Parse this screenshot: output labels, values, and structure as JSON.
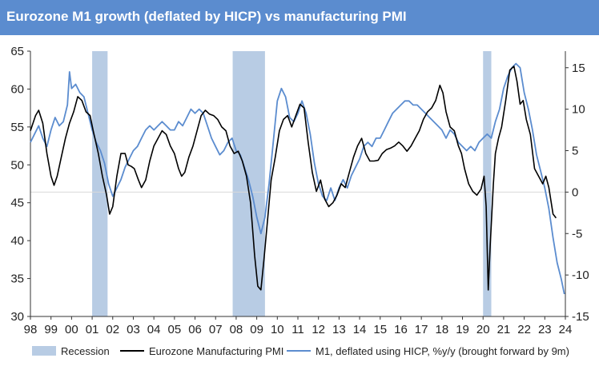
{
  "chart_data": {
    "type": "line",
    "title": "Eurozone M1 growth (deflated by HICP) vs manufacturing PMI",
    "x_tick_labels": [
      "98",
      "99",
      "00",
      "01",
      "02",
      "03",
      "04",
      "05",
      "06",
      "07",
      "08",
      "09",
      "10",
      "11",
      "12",
      "13",
      "14",
      "15",
      "16",
      "17",
      "18",
      "19",
      "20",
      "21",
      "22",
      "23",
      "24"
    ],
    "x_range": [
      1998,
      2024
    ],
    "left_axis": {
      "min": 30,
      "max": 65,
      "ticks": [
        "30",
        "35",
        "40",
        "45",
        "50",
        "55",
        "60",
        "65"
      ]
    },
    "right_axis": {
      "min": -15,
      "max": 17,
      "ticks": [
        "-15",
        "-10",
        "-5",
        "0",
        "5",
        "10",
        "15"
      ]
    },
    "recessions": [
      [
        2001.0,
        2001.75
      ],
      [
        2007.83,
        2009.4
      ],
      [
        2020.0,
        2020.4
      ]
    ],
    "series": [
      {
        "name": "Eurozone Manufacturing PMI",
        "axis": "left",
        "color": "#000000",
        "points": [
          [
            1998.0,
            54.5
          ],
          [
            1998.25,
            56.5
          ],
          [
            1998.4,
            57.2
          ],
          [
            1998.6,
            55.5
          ],
          [
            1998.8,
            51.5
          ],
          [
            1999.0,
            48.5
          ],
          [
            1999.15,
            47.3
          ],
          [
            1999.3,
            48.5
          ],
          [
            1999.5,
            51.0
          ],
          [
            1999.7,
            53.5
          ],
          [
            1999.9,
            55.5
          ],
          [
            2000.1,
            57.0
          ],
          [
            2000.3,
            59.0
          ],
          [
            2000.5,
            58.5
          ],
          [
            2000.7,
            57.0
          ],
          [
            2000.9,
            56.5
          ],
          [
            2001.05,
            54.5
          ],
          [
            2001.3,
            51.5
          ],
          [
            2001.5,
            48.5
          ],
          [
            2001.7,
            46.0
          ],
          [
            2001.85,
            43.5
          ],
          [
            2002.0,
            44.5
          ],
          [
            2002.2,
            48.5
          ],
          [
            2002.4,
            51.5
          ],
          [
            2002.6,
            51.5
          ],
          [
            2002.75,
            50.0
          ],
          [
            2002.9,
            49.8
          ],
          [
            2003.05,
            49.5
          ],
          [
            2003.25,
            48.0
          ],
          [
            2003.4,
            47.0
          ],
          [
            2003.6,
            48.0
          ],
          [
            2003.8,
            50.5
          ],
          [
            2004.0,
            52.5
          ],
          [
            2004.2,
            53.5
          ],
          [
            2004.4,
            54.5
          ],
          [
            2004.6,
            54.0
          ],
          [
            2004.8,
            52.5
          ],
          [
            2005.0,
            51.5
          ],
          [
            2005.2,
            49.5
          ],
          [
            2005.35,
            48.5
          ],
          [
            2005.5,
            49.0
          ],
          [
            2005.7,
            51.0
          ],
          [
            2005.9,
            52.5
          ],
          [
            2006.1,
            54.5
          ],
          [
            2006.3,
            56.5
          ],
          [
            2006.5,
            57.2
          ],
          [
            2006.7,
            56.7
          ],
          [
            2006.9,
            56.5
          ],
          [
            2007.1,
            56.0
          ],
          [
            2007.3,
            55.0
          ],
          [
            2007.5,
            54.5
          ],
          [
            2007.7,
            52.5
          ],
          [
            2007.9,
            51.5
          ],
          [
            2008.1,
            51.8
          ],
          [
            2008.3,
            50.5
          ],
          [
            2008.5,
            48.5
          ],
          [
            2008.7,
            45.0
          ],
          [
            2008.9,
            38.0
          ],
          [
            2009.05,
            34.0
          ],
          [
            2009.2,
            33.5
          ],
          [
            2009.35,
            37.5
          ],
          [
            2009.5,
            42.0
          ],
          [
            2009.7,
            48.0
          ],
          [
            2009.9,
            51.0
          ],
          [
            2010.1,
            54.5
          ],
          [
            2010.3,
            56.0
          ],
          [
            2010.5,
            56.5
          ],
          [
            2010.7,
            55.0
          ],
          [
            2010.9,
            56.5
          ],
          [
            2011.1,
            58.0
          ],
          [
            2011.3,
            57.5
          ],
          [
            2011.5,
            53.0
          ],
          [
            2011.7,
            49.0
          ],
          [
            2011.9,
            46.5
          ],
          [
            2012.1,
            48.0
          ],
          [
            2012.3,
            45.5
          ],
          [
            2012.5,
            44.5
          ],
          [
            2012.7,
            45.0
          ],
          [
            2012.9,
            46.0
          ],
          [
            2013.1,
            47.5
          ],
          [
            2013.3,
            47.0
          ],
          [
            2013.5,
            49.0
          ],
          [
            2013.7,
            51.0
          ],
          [
            2013.9,
            52.5
          ],
          [
            2014.1,
            53.5
          ],
          [
            2014.3,
            51.5
          ],
          [
            2014.5,
            50.5
          ],
          [
            2014.7,
            50.5
          ],
          [
            2014.9,
            50.6
          ],
          [
            2015.1,
            51.5
          ],
          [
            2015.3,
            52.0
          ],
          [
            2015.5,
            52.2
          ],
          [
            2015.7,
            52.5
          ],
          [
            2015.9,
            53.0
          ],
          [
            2016.1,
            52.5
          ],
          [
            2016.3,
            51.8
          ],
          [
            2016.5,
            52.5
          ],
          [
            2016.7,
            53.5
          ],
          [
            2016.9,
            54.5
          ],
          [
            2017.1,
            56.0
          ],
          [
            2017.3,
            57.0
          ],
          [
            2017.5,
            57.5
          ],
          [
            2017.7,
            58.5
          ],
          [
            2017.9,
            60.5
          ],
          [
            2018.05,
            59.5
          ],
          [
            2018.2,
            57.0
          ],
          [
            2018.4,
            55.0
          ],
          [
            2018.6,
            54.5
          ],
          [
            2018.8,
            52.5
          ],
          [
            2018.95,
            51.5
          ],
          [
            2019.1,
            49.5
          ],
          [
            2019.3,
            47.5
          ],
          [
            2019.5,
            46.5
          ],
          [
            2019.7,
            46.0
          ],
          [
            2019.9,
            46.8
          ],
          [
            2020.05,
            48.5
          ],
          [
            2020.15,
            44.5
          ],
          [
            2020.25,
            33.5
          ],
          [
            2020.35,
            39.5
          ],
          [
            2020.5,
            47.5
          ],
          [
            2020.6,
            51.5
          ],
          [
            2020.75,
            53.5
          ],
          [
            2020.9,
            55.0
          ],
          [
            2021.1,
            58.5
          ],
          [
            2021.3,
            62.5
          ],
          [
            2021.5,
            63.0
          ],
          [
            2021.65,
            61.0
          ],
          [
            2021.8,
            58.0
          ],
          [
            2021.95,
            58.5
          ],
          [
            2022.1,
            56.0
          ],
          [
            2022.3,
            54.0
          ],
          [
            2022.5,
            49.5
          ],
          [
            2022.7,
            48.5
          ],
          [
            2022.9,
            47.5
          ],
          [
            2023.05,
            48.5
          ],
          [
            2023.2,
            47.0
          ],
          [
            2023.4,
            43.5
          ],
          [
            2023.55,
            43.0
          ]
        ]
      },
      {
        "name": "M1, deflated using HICP, %y/y (brought forward by 9m)",
        "axis": "right",
        "color": "#5b8ccf",
        "points": [
          [
            1998.0,
            6.0
          ],
          [
            1998.2,
            7.0
          ],
          [
            1998.4,
            8.0
          ],
          [
            1998.6,
            6.5
          ],
          [
            1998.8,
            5.5
          ],
          [
            1999.0,
            7.5
          ],
          [
            1999.2,
            9.0
          ],
          [
            1999.4,
            8.0
          ],
          [
            1999.6,
            8.5
          ],
          [
            1999.8,
            10.5
          ],
          [
            1999.9,
            14.5
          ],
          [
            2000.0,
            12.5
          ],
          [
            2000.2,
            13.0
          ],
          [
            2000.4,
            12.0
          ],
          [
            2000.6,
            11.5
          ],
          [
            2000.8,
            9.5
          ],
          [
            2001.0,
            7.5
          ],
          [
            2001.2,
            6.0
          ],
          [
            2001.4,
            5.0
          ],
          [
            2001.6,
            3.5
          ],
          [
            2001.8,
            1.0
          ],
          [
            2002.0,
            -0.5
          ],
          [
            2002.2,
            0.5
          ],
          [
            2002.4,
            1.5
          ],
          [
            2002.6,
            3.0
          ],
          [
            2002.8,
            4.0
          ],
          [
            2003.0,
            5.0
          ],
          [
            2003.2,
            5.5
          ],
          [
            2003.4,
            6.5
          ],
          [
            2003.6,
            7.5
          ],
          [
            2003.8,
            8.0
          ],
          [
            2004.0,
            7.5
          ],
          [
            2004.2,
            8.0
          ],
          [
            2004.4,
            8.5
          ],
          [
            2004.6,
            8.0
          ],
          [
            2004.8,
            7.5
          ],
          [
            2005.0,
            7.5
          ],
          [
            2005.2,
            8.5
          ],
          [
            2005.4,
            8.0
          ],
          [
            2005.6,
            9.0
          ],
          [
            2005.8,
            10.0
          ],
          [
            2006.0,
            9.5
          ],
          [
            2006.2,
            10.0
          ],
          [
            2006.4,
            9.5
          ],
          [
            2006.6,
            8.0
          ],
          [
            2006.8,
            6.5
          ],
          [
            2007.0,
            5.5
          ],
          [
            2007.2,
            4.5
          ],
          [
            2007.4,
            5.0
          ],
          [
            2007.6,
            6.0
          ],
          [
            2007.8,
            6.5
          ],
          [
            2008.0,
            5.0
          ],
          [
            2008.2,
            4.5
          ],
          [
            2008.4,
            3.0
          ],
          [
            2008.6,
            1.5
          ],
          [
            2008.8,
            -0.5
          ],
          [
            2009.0,
            -3.0
          ],
          [
            2009.2,
            -5.0
          ],
          [
            2009.4,
            -3.0
          ],
          [
            2009.6,
            1.0
          ],
          [
            2009.8,
            6.0
          ],
          [
            2010.0,
            11.0
          ],
          [
            2010.2,
            12.5
          ],
          [
            2010.4,
            11.5
          ],
          [
            2010.6,
            9.0
          ],
          [
            2010.8,
            8.5
          ],
          [
            2011.0,
            9.5
          ],
          [
            2011.2,
            11.0
          ],
          [
            2011.4,
            9.5
          ],
          [
            2011.6,
            7.0
          ],
          [
            2011.8,
            3.5
          ],
          [
            2012.0,
            1.0
          ],
          [
            2012.2,
            -0.5
          ],
          [
            2012.4,
            -1.0
          ],
          [
            2012.6,
            0.5
          ],
          [
            2012.8,
            -1.0
          ],
          [
            2013.0,
            0.5
          ],
          [
            2013.2,
            1.5
          ],
          [
            2013.4,
            0.5
          ],
          [
            2013.6,
            2.0
          ],
          [
            2013.8,
            3.0
          ],
          [
            2014.0,
            4.0
          ],
          [
            2014.2,
            5.5
          ],
          [
            2014.4,
            6.0
          ],
          [
            2014.6,
            5.5
          ],
          [
            2014.8,
            6.5
          ],
          [
            2015.0,
            6.5
          ],
          [
            2015.2,
            7.5
          ],
          [
            2015.4,
            8.5
          ],
          [
            2015.6,
            9.5
          ],
          [
            2015.8,
            10.0
          ],
          [
            2016.0,
            10.5
          ],
          [
            2016.2,
            11.0
          ],
          [
            2016.4,
            11.0
          ],
          [
            2016.6,
            10.5
          ],
          [
            2016.8,
            10.5
          ],
          [
            2017.0,
            10.0
          ],
          [
            2017.2,
            9.5
          ],
          [
            2017.4,
            9.0
          ],
          [
            2017.6,
            8.5
          ],
          [
            2017.8,
            8.0
          ],
          [
            2018.0,
            7.5
          ],
          [
            2018.2,
            6.5
          ],
          [
            2018.4,
            7.5
          ],
          [
            2018.6,
            7.0
          ],
          [
            2018.8,
            6.0
          ],
          [
            2019.0,
            5.5
          ],
          [
            2019.2,
            5.0
          ],
          [
            2019.4,
            5.5
          ],
          [
            2019.6,
            5.0
          ],
          [
            2019.8,
            6.0
          ],
          [
            2020.0,
            6.5
          ],
          [
            2020.2,
            7.0
          ],
          [
            2020.4,
            6.5
          ],
          [
            2020.6,
            8.5
          ],
          [
            2020.8,
            10.0
          ],
          [
            2021.0,
            12.5
          ],
          [
            2021.2,
            14.0
          ],
          [
            2021.4,
            15.0
          ],
          [
            2021.6,
            15.5
          ],
          [
            2021.8,
            15.0
          ],
          [
            2022.0,
            12.0
          ],
          [
            2022.2,
            10.0
          ],
          [
            2022.4,
            7.5
          ],
          [
            2022.6,
            4.5
          ],
          [
            2022.8,
            2.5
          ],
          [
            2023.0,
            0.5
          ],
          [
            2023.2,
            -2.0
          ],
          [
            2023.4,
            -5.5
          ],
          [
            2023.6,
            -8.5
          ],
          [
            2023.8,
            -10.5
          ],
          [
            2023.95,
            -12.3
          ]
        ]
      }
    ],
    "legend": [
      "Recession",
      "Eurozone Manufacturing PMI",
      "M1, deflated using HICP, %y/y (brought forward by 9m)"
    ],
    "colors": {
      "recession": "#b8cce4",
      "pmi": "#000000",
      "m1": "#5b8ccf",
      "title_bar": "#5b8ccf"
    }
  }
}
